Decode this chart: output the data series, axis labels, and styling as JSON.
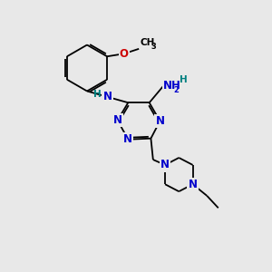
{
  "background_color": "#e8e8e8",
  "bond_color": "#000000",
  "N_color": "#0000cc",
  "O_color": "#cc0000",
  "H_color": "#008080",
  "font_size": 8.5,
  "lw": 1.3,
  "figsize": [
    3.0,
    3.0
  ],
  "dpi": 100,
  "xlim": [
    0,
    10
  ],
  "ylim": [
    0,
    10
  ]
}
